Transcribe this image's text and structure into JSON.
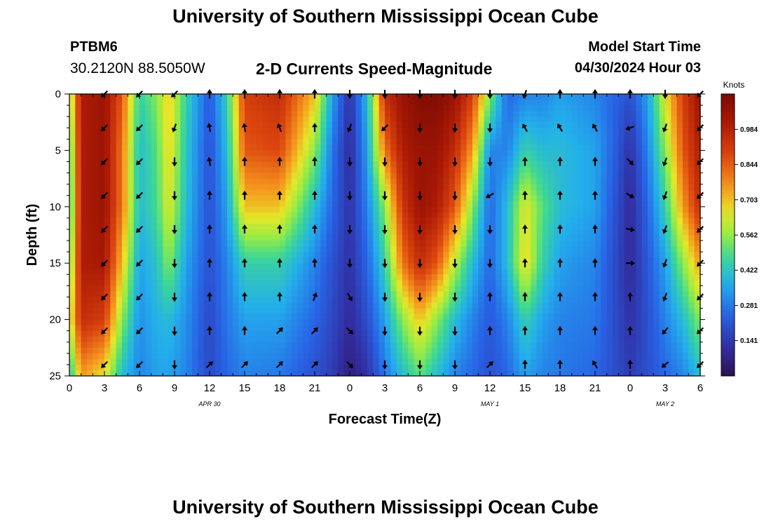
{
  "header": {
    "title": "University of Southern Mississippi Ocean Cube",
    "station": "PTBM6",
    "coords": "30.2120N  88.5050W",
    "subtitle": "2-D Currents Speed-Magnitude",
    "model_start_label": "Model Start Time",
    "model_start_value": "04/30/2024 Hour 03"
  },
  "footer": {
    "title": "University of Southern Mississippi Ocean Cube"
  },
  "chart_data": {
    "type": "heatmap",
    "title": "2-D Currents Speed-Magnitude",
    "xlabel": "Forecast Time(Z)",
    "ylabel": "Depth (ft)",
    "x_tick_labels": [
      "0",
      "3",
      "6",
      "9",
      "12",
      "15",
      "18",
      "21",
      "0",
      "3",
      "6",
      "9",
      "12",
      "15",
      "18",
      "21",
      "0",
      "3",
      "6"
    ],
    "x_range_hours": [
      0,
      54
    ],
    "date_labels": [
      {
        "label": "APR 30",
        "hour": 12
      },
      {
        "label": "MAY 1",
        "hour": 36
      },
      {
        "label": "MAY 2",
        "hour": 51
      }
    ],
    "y_ticks": [
      0,
      5,
      10,
      15,
      20,
      25
    ],
    "y_range": [
      0,
      25
    ],
    "y_inverted": true,
    "colorbar": {
      "label": "Knots",
      "tick_labels": [
        "0.984",
        "0.844",
        "0.703",
        "0.562",
        "0.422",
        "0.281",
        "0.141"
      ],
      "range": [
        0,
        1.125
      ],
      "colormap": "jet"
    },
    "profile_depths": [
      0,
      5,
      10,
      15,
      20,
      25
    ],
    "speed_profiles": [
      {
        "hour": 0,
        "speeds": [
          0.55,
          0.45,
          0.42,
          0.5,
          0.6,
          0.4
        ]
      },
      {
        "hour": 1,
        "speeds": [
          1.0,
          1.0,
          1.0,
          1.0,
          0.95,
          0.75
        ]
      },
      {
        "hour": 3,
        "speeds": [
          1.05,
          1.05,
          1.05,
          1.02,
          0.9,
          0.65
        ]
      },
      {
        "hour": 4.5,
        "speeds": [
          0.85,
          0.8,
          0.8,
          0.7,
          0.55,
          0.4
        ]
      },
      {
        "hour": 6,
        "speeds": [
          0.45,
          0.4,
          0.4,
          0.35,
          0.32,
          0.3
        ]
      },
      {
        "hour": 7.5,
        "speeds": [
          0.55,
          0.5,
          0.48,
          0.42,
          0.38,
          0.35
        ]
      },
      {
        "hour": 8.5,
        "speeds": [
          0.7,
          0.68,
          0.65,
          0.55,
          0.4,
          0.35
        ]
      },
      {
        "hour": 10,
        "speeds": [
          0.45,
          0.42,
          0.4,
          0.35,
          0.32,
          0.3
        ]
      },
      {
        "hour": 12,
        "speeds": [
          0.22,
          0.2,
          0.2,
          0.2,
          0.18,
          0.18
        ]
      },
      {
        "hour": 13.5,
        "speeds": [
          0.45,
          0.4,
          0.35,
          0.3,
          0.28,
          0.25
        ]
      },
      {
        "hour": 15,
        "speeds": [
          0.9,
          0.85,
          0.7,
          0.45,
          0.35,
          0.3
        ]
      },
      {
        "hour": 18,
        "speeds": [
          0.95,
          0.88,
          0.7,
          0.45,
          0.35,
          0.28
        ]
      },
      {
        "hour": 21,
        "speeds": [
          0.7,
          0.55,
          0.4,
          0.3,
          0.25,
          0.2
        ]
      },
      {
        "hour": 22.5,
        "speeds": [
          0.35,
          0.28,
          0.25,
          0.2,
          0.18,
          0.15
        ]
      },
      {
        "hour": 24,
        "speeds": [
          0.12,
          0.1,
          0.12,
          0.12,
          0.1,
          0.06
        ]
      },
      {
        "hour": 25.5,
        "speeds": [
          0.4,
          0.35,
          0.3,
          0.25,
          0.2,
          0.12
        ]
      },
      {
        "hour": 27,
        "speeds": [
          0.95,
          0.8,
          0.55,
          0.45,
          0.35,
          0.28
        ]
      },
      {
        "hour": 28.5,
        "speeds": [
          1.05,
          1.0,
          0.92,
          0.8,
          0.55,
          0.4
        ]
      },
      {
        "hour": 30,
        "speeds": [
          1.1,
          1.05,
          1.05,
          0.95,
          0.7,
          0.5
        ]
      },
      {
        "hour": 31.5,
        "speeds": [
          1.1,
          1.05,
          1.0,
          0.85,
          0.55,
          0.4
        ]
      },
      {
        "hour": 33,
        "speeds": [
          1.05,
          0.95,
          0.85,
          0.6,
          0.4,
          0.3
        ]
      },
      {
        "hour": 34.5,
        "speeds": [
          0.9,
          0.75,
          0.55,
          0.4,
          0.3,
          0.25
        ]
      },
      {
        "hour": 36,
        "speeds": [
          0.55,
          0.3,
          0.25,
          0.25,
          0.22,
          0.2
        ]
      },
      {
        "hour": 37.5,
        "speeds": [
          0.25,
          0.3,
          0.4,
          0.4,
          0.3,
          0.25
        ]
      },
      {
        "hour": 39,
        "speeds": [
          0.3,
          0.45,
          0.65,
          0.68,
          0.45,
          0.35
        ]
      },
      {
        "hour": 40.5,
        "speeds": [
          0.3,
          0.4,
          0.5,
          0.45,
          0.35,
          0.3
        ]
      },
      {
        "hour": 42,
        "speeds": [
          0.35,
          0.4,
          0.4,
          0.35,
          0.3,
          0.28
        ]
      },
      {
        "hour": 45,
        "speeds": [
          0.3,
          0.35,
          0.35,
          0.3,
          0.28,
          0.25
        ]
      },
      {
        "hour": 46.5,
        "speeds": [
          0.25,
          0.25,
          0.22,
          0.2,
          0.2,
          0.2
        ]
      },
      {
        "hour": 48,
        "speeds": [
          0.2,
          0.12,
          0.1,
          0.1,
          0.12,
          0.15
        ]
      },
      {
        "hour": 49.5,
        "speeds": [
          0.35,
          0.3,
          0.25,
          0.22,
          0.2,
          0.2
        ]
      },
      {
        "hour": 51,
        "speeds": [
          0.65,
          0.55,
          0.45,
          0.35,
          0.3,
          0.25
        ]
      },
      {
        "hour": 52.5,
        "speeds": [
          0.9,
          0.85,
          0.75,
          0.55,
          0.4,
          0.3
        ]
      },
      {
        "hour": 54,
        "speeds": [
          1.05,
          1.0,
          0.95,
          0.75,
          0.55,
          0.4
        ]
      }
    ],
    "vectors": {
      "hours": [
        3,
        6,
        9,
        12,
        15,
        18,
        21,
        24,
        27,
        30,
        33,
        36,
        39,
        42,
        45,
        48,
        51,
        54
      ],
      "depths": [
        0,
        3,
        6,
        9,
        12,
        15,
        18,
        21,
        24
      ],
      "directions_deg_from_north": [
        [
          225,
          225,
          225,
          225,
          225,
          225,
          225,
          225,
          225
        ],
        [
          225,
          225,
          225,
          225,
          225,
          225,
          225,
          225,
          225
        ],
        [
          225,
          200,
          180,
          180,
          180,
          180,
          180,
          180,
          180
        ],
        [
          0,
          350,
          350,
          0,
          0,
          0,
          0,
          0,
          45
        ],
        [
          0,
          350,
          0,
          0,
          0,
          0,
          0,
          0,
          45
        ],
        [
          0,
          340,
          0,
          0,
          0,
          0,
          0,
          45,
          45
        ],
        [
          0,
          0,
          0,
          0,
          0,
          0,
          20,
          45,
          45
        ],
        [
          180,
          200,
          180,
          180,
          180,
          180,
          150,
          135,
          135
        ],
        [
          180,
          225,
          180,
          180,
          180,
          180,
          180,
          180,
          180
        ],
        [
          180,
          180,
          180,
          180,
          180,
          180,
          180,
          180,
          180
        ],
        [
          180,
          180,
          180,
          180,
          180,
          180,
          180,
          180,
          180
        ],
        [
          180,
          180,
          180,
          240,
          180,
          180,
          0,
          0,
          45
        ],
        [
          200,
          330,
          0,
          0,
          0,
          0,
          0,
          0,
          0
        ],
        [
          0,
          330,
          0,
          0,
          0,
          0,
          0,
          0,
          0
        ],
        [
          0,
          330,
          0,
          0,
          0,
          0,
          0,
          0,
          330
        ],
        [
          0,
          250,
          135,
          120,
          100,
          90,
          0,
          0,
          0
        ],
        [
          180,
          200,
          200,
          200,
          200,
          200,
          200,
          220,
          230
        ],
        [
          225,
          225,
          225,
          225,
          225,
          225,
          225,
          225,
          225
        ]
      ]
    }
  }
}
